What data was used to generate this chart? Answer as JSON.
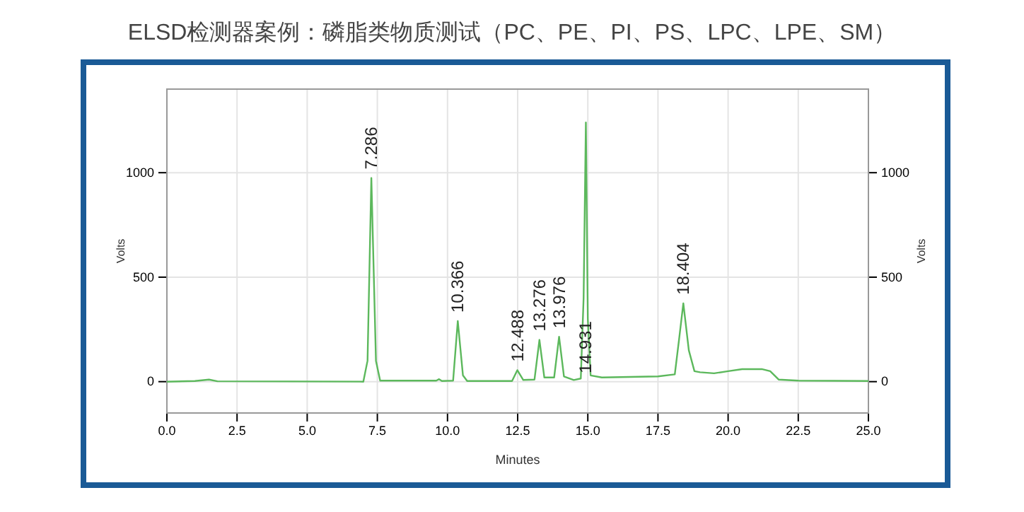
{
  "chart_data": {
    "type": "line",
    "title": "ELSD检测器案例：磷脂类物质测试（PC、PE、PI、PS、LPC、LPE、SM）",
    "xlabel": "Minutes",
    "ylabel": "Volts",
    "y2label": "Volts",
    "x": [
      0,
      1.0,
      1.5,
      1.8,
      7.0,
      7.15,
      7.286,
      7.45,
      7.6,
      9.6,
      9.7,
      9.8,
      10.2,
      10.366,
      10.55,
      10.7,
      12.3,
      12.488,
      12.7,
      13.1,
      13.276,
      13.45,
      13.8,
      13.976,
      14.15,
      14.5,
      14.75,
      14.85,
      14.931,
      15.0,
      15.1,
      15.5,
      17.5,
      18.1,
      18.25,
      18.404,
      18.6,
      18.8,
      19.0,
      19.5,
      20.0,
      20.5,
      21.2,
      21.5,
      21.8,
      22.5,
      25
    ],
    "series": [
      {
        "color": "#5cb85c",
        "values": [
          0,
          3,
          10,
          2,
          0,
          100,
          975,
          100,
          5,
          5,
          12,
          3,
          5,
          290,
          30,
          3,
          3,
          55,
          8,
          10,
          200,
          20,
          20,
          215,
          25,
          8,
          15,
          400,
          1240,
          300,
          30,
          20,
          25,
          35,
          200,
          375,
          150,
          50,
          45,
          40,
          50,
          60,
          60,
          50,
          10,
          5,
          3
        ]
      }
    ],
    "xlim": [
      0,
      25
    ],
    "xticks": [
      {
        "value": 0,
        "label": "0.0"
      },
      {
        "value": 2.5,
        "label": "2.5"
      },
      {
        "value": 5,
        "label": "5.0"
      },
      {
        "value": 7.5,
        "label": "7.5"
      },
      {
        "value": 10,
        "label": "10.0"
      },
      {
        "value": 12.5,
        "label": "12.5"
      },
      {
        "value": 15,
        "label": "15.0"
      },
      {
        "value": 17.5,
        "label": "17.5"
      },
      {
        "value": 20,
        "label": "20.0"
      },
      {
        "value": 22.5,
        "label": "22.5"
      },
      {
        "value": 25,
        "label": "25.0"
      }
    ],
    "ylim": [
      -150,
      1400
    ],
    "yticks": [
      0,
      500,
      1000
    ],
    "y2lim": [
      -150,
      1400
    ],
    "y2ticks": [
      0,
      500,
      1000
    ],
    "grid": true,
    "annotations": [
      {
        "text": "7.286",
        "x": 7.286,
        "y": 975
      },
      {
        "text": "10.366",
        "x": 10.366,
        "y": 290
      },
      {
        "text": "12.488",
        "x": 12.488,
        "y": 55
      },
      {
        "text": "13.276",
        "x": 13.276,
        "y": 200
      },
      {
        "text": "13.976",
        "x": 13.976,
        "y": 215
      },
      {
        "text": "14.931",
        "x": 14.931,
        "y": 0
      },
      {
        "text": "18.404",
        "x": 18.404,
        "y": 375
      }
    ]
  }
}
